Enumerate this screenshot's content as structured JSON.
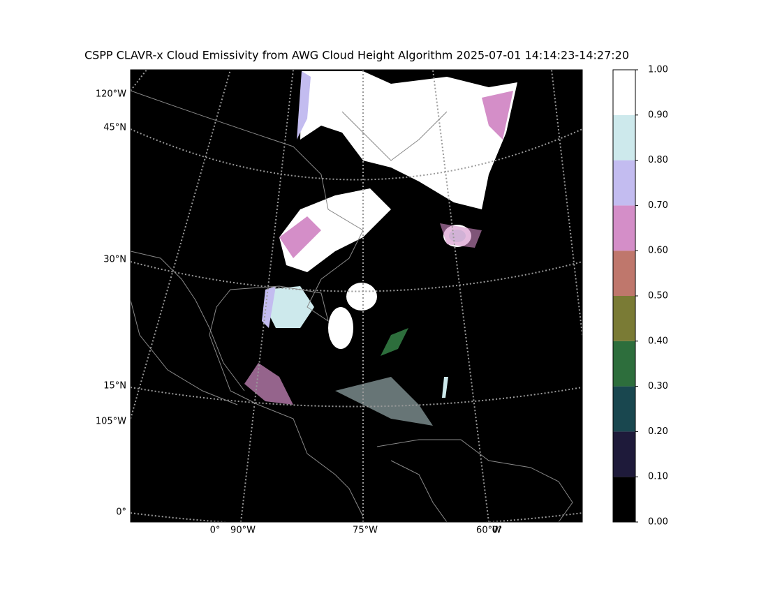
{
  "title": "CSPP CLAVR-x Cloud Emissivity from AWG Cloud Height Algorithm 2025-07-01 14:14:23-14:27:20",
  "left_labels": [
    "120°W",
    "45°N",
    "30°N",
    "15°N",
    "105°W",
    "0°"
  ],
  "bottom_labels": [
    "0°",
    "90°W",
    "75°W",
    "60°W",
    "0°"
  ],
  "colorbar": {
    "ticks": [
      {
        "value": 0,
        "label": "0.00"
      },
      {
        "value": 0.1,
        "label": "0.10"
      },
      {
        "value": 0.2,
        "label": "0.20"
      },
      {
        "value": 0.3,
        "label": "0.30"
      },
      {
        "value": 0.4,
        "label": "0.40"
      },
      {
        "value": 0.5,
        "label": "0.50"
      },
      {
        "value": 0.6,
        "label": "0.60"
      },
      {
        "value": 0.7,
        "label": "0.70"
      },
      {
        "value": 0.8,
        "label": "0.80"
      },
      {
        "value": 0.9,
        "label": "0.90"
      },
      {
        "value": 1,
        "label": "1.00"
      }
    ],
    "colors": [
      "#000000",
      "#1e1a3a",
      "#19474f",
      "#2d6e3c",
      "#7a7b35",
      "#bf776c",
      "#d48ec8",
      "#c3bcf0",
      "#cde9ec",
      "#ffffff"
    ],
    "lim": [
      0,
      1
    ]
  }
}
